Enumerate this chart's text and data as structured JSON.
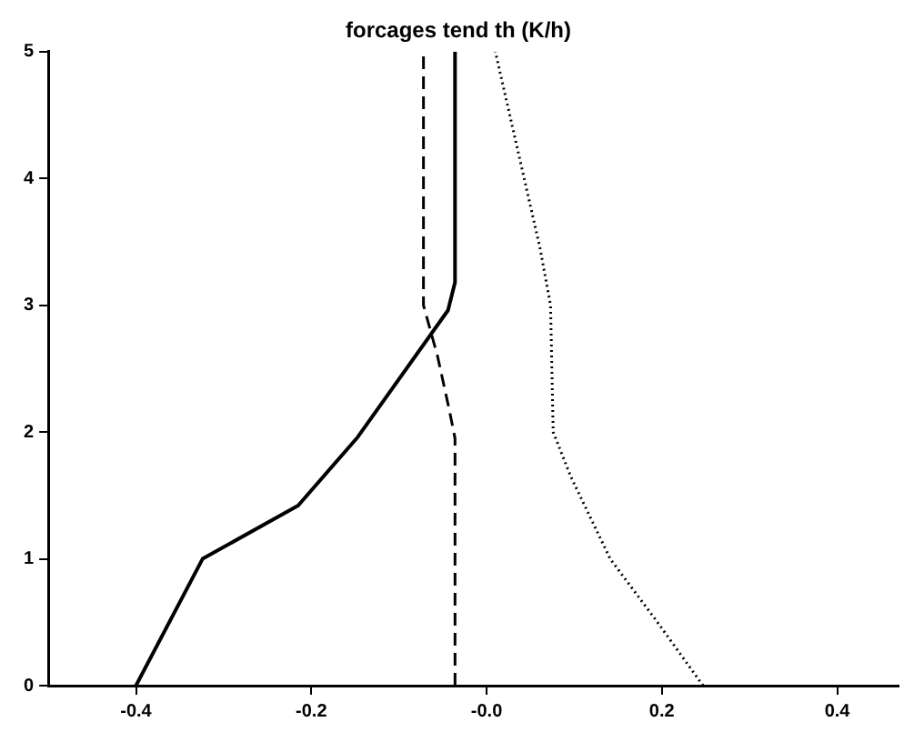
{
  "chart_data": {
    "type": "line",
    "title": "forcages tend th (K/h)",
    "xlim": [
      -0.5,
      0.47
    ],
    "xticks": [
      -0.4,
      -0.2,
      {
        "value": 0,
        "label": "-0.0"
      },
      0.2,
      0.4
    ],
    "ylim": [
      0,
      5
    ],
    "yticks": [
      0,
      1,
      2,
      3,
      4,
      5
    ],
    "grid": false,
    "legend": false,
    "marker": "none",
    "series": [
      {
        "color": "#000000",
        "line_style": "solid",
        "x": [
          -0.4,
          -0.324,
          -0.215,
          -0.147,
          -0.044,
          -0.036,
          -0.036
        ],
        "values": [
          0,
          1,
          1.42,
          1.96,
          2.96,
          3.18,
          5
        ]
      },
      {
        "color": "#000000",
        "line_style": "dashed",
        "x": [
          -0.036,
          -0.036,
          -0.043,
          -0.056,
          -0.072,
          -0.072
        ],
        "values": [
          0,
          1.95,
          2.19,
          2.6,
          3.0,
          5
        ]
      },
      {
        "color": "#000000",
        "line_style": "dotted",
        "x": [
          0.247,
          0.195,
          0.141,
          0.096,
          0.076,
          0.073,
          0.061,
          0.01
        ],
        "values": [
          0,
          0.5,
          1,
          1.65,
          2,
          3,
          3.45,
          5
        ]
      }
    ]
  }
}
